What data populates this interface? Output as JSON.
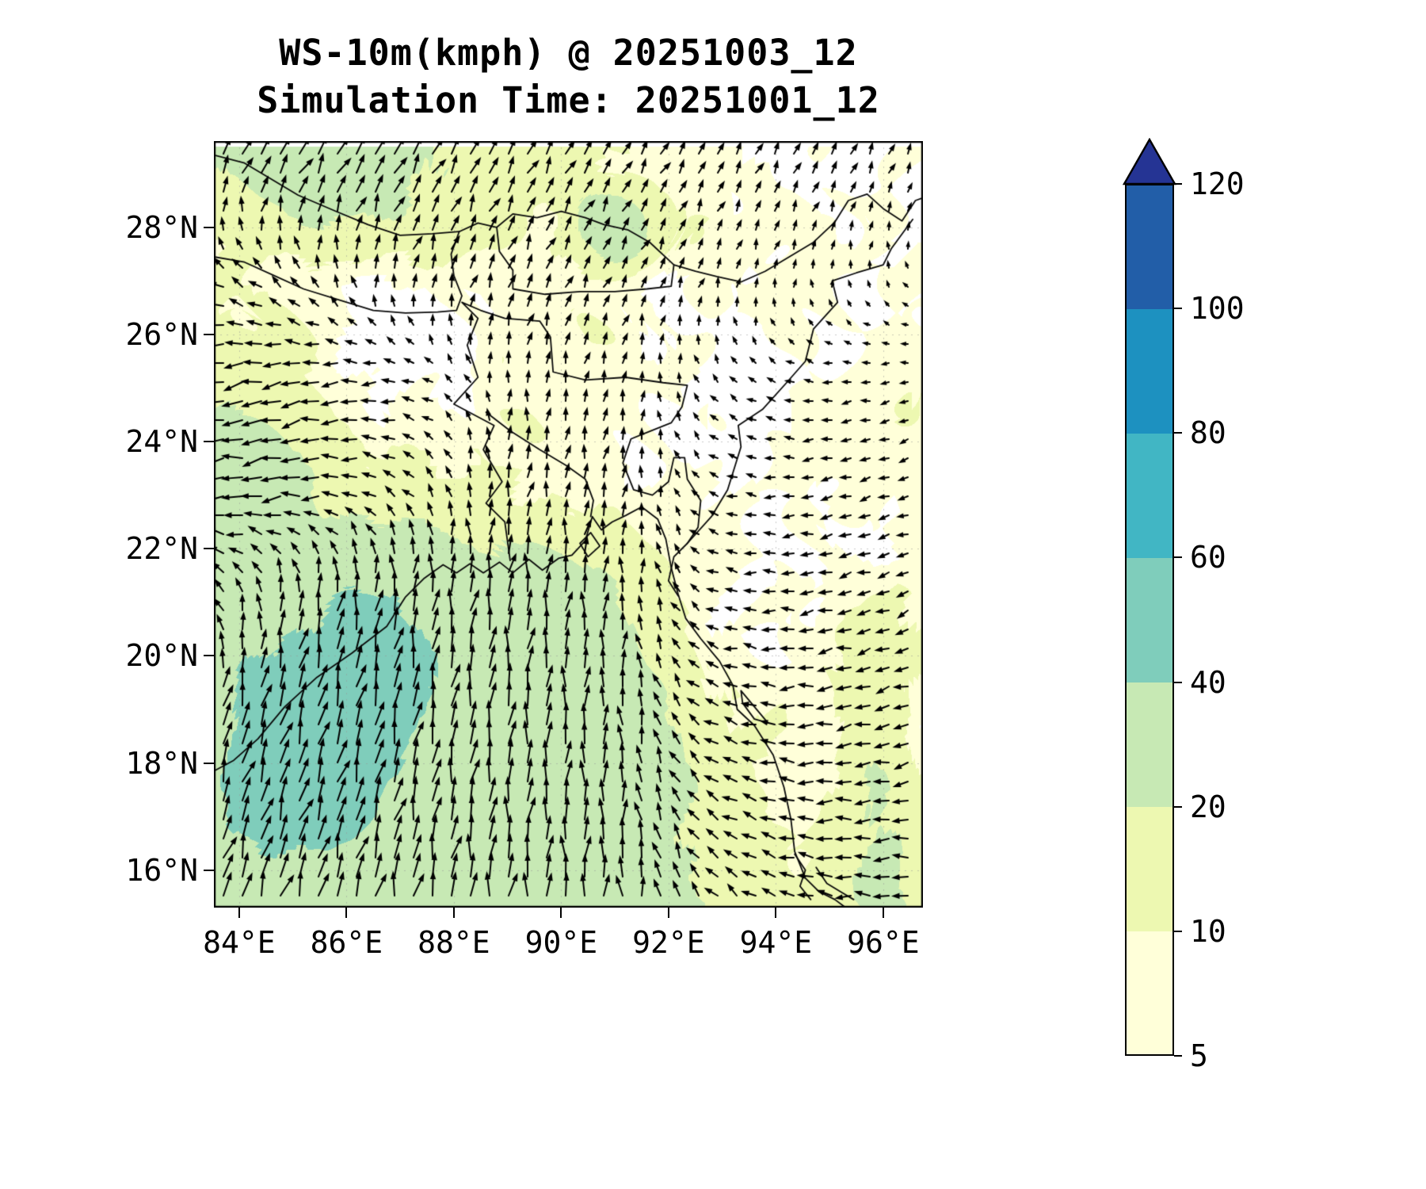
{
  "title": {
    "line1": "WS-10m(kmph) @ 20251003_12",
    "line2": "Simulation Time: 20251001_12"
  },
  "chart_data": {
    "type": "heatmap",
    "subtype": "wind-speed-map-with-quiver",
    "variable": "WS-10m",
    "units": "kmph",
    "valid_time": "20251003_12",
    "simulation_time": "20251001_12",
    "title": "WS-10m(kmph) @ 20251003_12",
    "subtitle": "Simulation Time: 20251001_12",
    "x_axis": {
      "ticks": [
        "84°E",
        "86°E",
        "88°E",
        "90°E",
        "92°E",
        "94°E",
        "96°E"
      ],
      "tick_values": [
        84,
        86,
        88,
        90,
        92,
        94,
        96
      ],
      "range": [
        83.53,
        96.74
      ]
    },
    "y_axis": {
      "ticks": [
        "16°N",
        "18°N",
        "20°N",
        "22°N",
        "24°N",
        "26°N",
        "28°N"
      ],
      "tick_values": [
        16,
        18,
        20,
        22,
        24,
        26,
        28
      ],
      "range": [
        15.3,
        29.61
      ]
    },
    "grid": "faint dotted",
    "colorbar": {
      "levels": [
        5,
        10,
        20,
        40,
        60,
        80,
        100,
        120
      ],
      "labels": [
        "5",
        "10",
        "20",
        "40",
        "60",
        "80",
        "100",
        "120"
      ],
      "band_colors": [
        "#ffffd9",
        "#edf8b1",
        "#c7e9b4",
        "#7fcdbb",
        "#41b6c4",
        "#1d91c0",
        "#225ea8"
      ],
      "under_color": "#ffffff",
      "over_color": "#253494",
      "extend": "max"
    },
    "speed_field": {
      "comment": "wind speed (kmph) estimated on 1-degree grid, rows from lat_start northward",
      "lon_start": 83,
      "lon_step": 1,
      "lat_start": 15,
      "lat_step": 1,
      "values_by_lat": [
        [
          28,
          30,
          32,
          32,
          32,
          30,
          28,
          26,
          25,
          24,
          18,
          14,
          14,
          22,
          12
        ],
        [
          30,
          34,
          36,
          35,
          33,
          31,
          29,
          27,
          26,
          24,
          16,
          12,
          14,
          24,
          12
        ],
        [
          32,
          42,
          46,
          44,
          36,
          32,
          30,
          28,
          26,
          23,
          14,
          10,
          12,
          24,
          6
        ],
        [
          30,
          45,
          50,
          48,
          40,
          33,
          31,
          29,
          27,
          23,
          12,
          8,
          8,
          22,
          4
        ],
        [
          26,
          44,
          50,
          49,
          45,
          34,
          31,
          29,
          27,
          21,
          10,
          8,
          6,
          16,
          4
        ],
        [
          22,
          38,
          46,
          47,
          46,
          34,
          31,
          28,
          25,
          16,
          8,
          6,
          8,
          14,
          6
        ],
        [
          18,
          26,
          34,
          44,
          40,
          32,
          29,
          26,
          21,
          11,
          6,
          6,
          8,
          12,
          8
        ],
        [
          20,
          24,
          22,
          26,
          26,
          24,
          22,
          19,
          13,
          8,
          6,
          4,
          4,
          6,
          8
        ],
        [
          22,
          28,
          24,
          14,
          12,
          12,
          12,
          10,
          8,
          6,
          6,
          4,
          6,
          6,
          8
        ],
        [
          18,
          26,
          20,
          10,
          8,
          8,
          8,
          8,
          6,
          6,
          4,
          4,
          6,
          8,
          8
        ],
        [
          12,
          16,
          12,
          8,
          4,
          4,
          8,
          8,
          6,
          6,
          4,
          4,
          6,
          6,
          8
        ],
        [
          10,
          12,
          10,
          4,
          3,
          4,
          8,
          8,
          8,
          4,
          4,
          6,
          6,
          6,
          8
        ],
        [
          8,
          10,
          6,
          4,
          4,
          8,
          8,
          10,
          8,
          4,
          4,
          6,
          6,
          6,
          6
        ],
        [
          10,
          14,
          18,
          20,
          16,
          12,
          10,
          12,
          42,
          12,
          8,
          6,
          6,
          4,
          4
        ],
        [
          16,
          22,
          26,
          28,
          24,
          18,
          14,
          12,
          10,
          8,
          8,
          4,
          4,
          4,
          4
        ]
      ]
    },
    "wind_vectors": {
      "comment": "normalized u,v flow direction on 2-degree grid, rows from lat_start northward; strong southerlies over Bay of Bengal, easterly/westward flow over west-central India",
      "lon_start": 83,
      "lon_step": 2,
      "lat_start": 15,
      "lat_step": 2,
      "u": [
        [
          0.3,
          0.3,
          0.2,
          0.1,
          0.0,
          -0.4,
          -0.6,
          -0.6
        ],
        [
          0.3,
          0.35,
          0.25,
          0.1,
          0.0,
          -0.5,
          -0.6,
          -0.6
        ],
        [
          0.2,
          0.3,
          0.2,
          0.1,
          0.0,
          -0.5,
          -0.6,
          -0.5
        ],
        [
          -0.5,
          0.1,
          0.15,
          0.1,
          0.05,
          -0.4,
          -0.5,
          -0.4
        ],
        [
          -0.9,
          -0.8,
          -0.4,
          0.1,
          0.1,
          -0.3,
          -0.4,
          -0.3
        ],
        [
          -0.9,
          -0.8,
          -0.5,
          0.0,
          0.1,
          -0.2,
          -0.3,
          -0.2
        ],
        [
          -0.6,
          -0.3,
          0.1,
          0.2,
          0.2,
          0.1,
          0.0,
          -0.1
        ],
        [
          0.3,
          0.4,
          0.4,
          0.3,
          0.3,
          0.2,
          0.2,
          0.1
        ]
      ],
      "v": [
        [
          1.0,
          1.0,
          1.0,
          1.0,
          0.9,
          0.4,
          0.1,
          0.0
        ],
        [
          1.0,
          1.0,
          1.0,
          1.0,
          0.9,
          0.3,
          0.0,
          -0.1
        ],
        [
          0.9,
          1.0,
          1.0,
          1.0,
          0.8,
          0.2,
          -0.1,
          -0.2
        ],
        [
          0.3,
          0.8,
          0.9,
          0.9,
          0.7,
          0.1,
          -0.1,
          -0.2
        ],
        [
          -0.1,
          -0.1,
          0.3,
          0.6,
          0.5,
          0.1,
          -0.1,
          -0.1
        ],
        [
          -0.2,
          -0.2,
          0.0,
          0.4,
          0.4,
          0.2,
          0.0,
          -0.1
        ],
        [
          0.2,
          0.4,
          0.5,
          0.5,
          0.4,
          0.3,
          0.2,
          0.1
        ],
        [
          0.6,
          0.7,
          0.7,
          0.6,
          0.5,
          0.4,
          0.4,
          0.3
        ]
      ]
    },
    "coastlines": [
      {
        "name": "coast-main",
        "points": [
          [
            83.53,
            17.85
          ],
          [
            83.9,
            18.05
          ],
          [
            84.35,
            18.45
          ],
          [
            84.85,
            19.05
          ],
          [
            85.45,
            19.6
          ],
          [
            86.1,
            20.05
          ],
          [
            86.75,
            20.55
          ],
          [
            87.1,
            21.1
          ],
          [
            87.45,
            21.45
          ],
          [
            87.8,
            21.7
          ],
          [
            88.05,
            21.55
          ],
          [
            88.3,
            21.72
          ],
          [
            88.55,
            21.55
          ],
          [
            88.85,
            21.75
          ],
          [
            89.1,
            21.55
          ],
          [
            89.4,
            21.8
          ],
          [
            89.65,
            21.6
          ],
          [
            89.95,
            21.82
          ],
          [
            90.2,
            21.88
          ],
          [
            90.45,
            22.15
          ],
          [
            90.58,
            22.6
          ],
          [
            90.75,
            22.35
          ],
          [
            90.95,
            22.5
          ],
          [
            91.2,
            22.62
          ],
          [
            91.5,
            22.78
          ],
          [
            91.8,
            22.55
          ],
          [
            91.95,
            22.18
          ],
          [
            92.05,
            21.65
          ],
          [
            92.18,
            21.15
          ],
          [
            92.32,
            20.7
          ],
          [
            92.6,
            20.32
          ],
          [
            92.95,
            19.9
          ],
          [
            93.2,
            19.45
          ],
          [
            93.28,
            19.0
          ],
          [
            93.6,
            18.7
          ],
          [
            93.95,
            18.15
          ],
          [
            94.15,
            17.55
          ],
          [
            94.28,
            16.95
          ],
          [
            94.35,
            16.35
          ],
          [
            94.55,
            15.85
          ],
          [
            94.8,
            15.6
          ],
          [
            95.1,
            15.45
          ],
          [
            95.3,
            15.3
          ]
        ]
      },
      {
        "name": "himalaya-border",
        "points": [
          [
            83.53,
            29.35
          ],
          [
            84.1,
            29.2
          ],
          [
            84.6,
            28.9
          ],
          [
            85.1,
            28.6
          ],
          [
            85.8,
            28.3
          ],
          [
            86.4,
            28.05
          ],
          [
            87.0,
            27.85
          ],
          [
            87.6,
            27.88
          ],
          [
            88.1,
            27.92
          ],
          [
            88.45,
            28.08
          ],
          [
            88.8,
            28.0
          ],
          [
            89.1,
            28.25
          ],
          [
            89.55,
            28.18
          ],
          [
            90.0,
            28.3
          ],
          [
            90.45,
            28.18
          ],
          [
            90.8,
            28.05
          ],
          [
            91.25,
            27.95
          ],
          [
            91.65,
            27.72
          ],
          [
            92.1,
            27.3
          ],
          [
            92.5,
            27.18
          ],
          [
            92.9,
            27.08
          ],
          [
            93.35,
            26.98
          ],
          [
            93.8,
            27.18
          ],
          [
            94.25,
            27.45
          ],
          [
            94.7,
            27.72
          ],
          [
            95.1,
            28.1
          ],
          [
            95.35,
            28.5
          ],
          [
            95.7,
            28.62
          ],
          [
            96.0,
            28.35
          ],
          [
            96.35,
            28.12
          ],
          [
            96.6,
            28.5
          ],
          [
            96.74,
            28.55
          ]
        ]
      },
      {
        "name": "nepal-south-border",
        "points": [
          [
            83.53,
            27.45
          ],
          [
            84.1,
            27.35
          ],
          [
            84.65,
            27.1
          ],
          [
            85.2,
            26.85
          ],
          [
            85.85,
            26.65
          ],
          [
            86.5,
            26.45
          ],
          [
            87.1,
            26.4
          ],
          [
            87.7,
            26.42
          ],
          [
            88.05,
            26.45
          ],
          [
            88.15,
            26.72
          ],
          [
            88.0,
            27.1
          ],
          [
            87.95,
            27.5
          ],
          [
            88.1,
            27.92
          ]
        ]
      },
      {
        "name": "bhutan-border",
        "points": [
          [
            88.8,
            28.0
          ],
          [
            88.85,
            27.55
          ],
          [
            89.1,
            27.2
          ],
          [
            89.1,
            26.85
          ],
          [
            89.7,
            26.75
          ],
          [
            90.35,
            26.8
          ],
          [
            91.0,
            26.8
          ],
          [
            91.6,
            26.85
          ],
          [
            92.05,
            26.9
          ],
          [
            92.1,
            27.3
          ]
        ]
      },
      {
        "name": "bangladesh-border",
        "points": [
          [
            89.05,
            21.78
          ],
          [
            88.95,
            22.5
          ],
          [
            88.6,
            22.85
          ],
          [
            88.9,
            23.25
          ],
          [
            88.55,
            23.85
          ],
          [
            88.75,
            24.3
          ],
          [
            88.0,
            24.7
          ],
          [
            88.45,
            25.2
          ],
          [
            88.25,
            25.8
          ],
          [
            88.45,
            26.3
          ],
          [
            88.15,
            26.6
          ],
          [
            88.5,
            26.45
          ],
          [
            88.95,
            26.3
          ],
          [
            89.6,
            26.25
          ],
          [
            89.8,
            25.95
          ],
          [
            89.85,
            25.3
          ],
          [
            90.45,
            25.15
          ],
          [
            91.2,
            25.2
          ],
          [
            91.9,
            25.1
          ],
          [
            92.35,
            25.05
          ],
          [
            92.25,
            24.65
          ],
          [
            92.05,
            24.35
          ],
          [
            91.55,
            24.15
          ],
          [
            91.3,
            24.05
          ],
          [
            91.15,
            23.6
          ],
          [
            91.35,
            23.1
          ],
          [
            91.7,
            23.0
          ],
          [
            92.0,
            23.25
          ],
          [
            92.1,
            23.7
          ],
          [
            92.3,
            23.7
          ],
          [
            92.35,
            23.3
          ],
          [
            92.6,
            22.9
          ],
          [
            92.55,
            22.4
          ],
          [
            92.35,
            22.1
          ],
          [
            92.1,
            21.85
          ],
          [
            92.0,
            21.4
          ],
          [
            92.18,
            21.12
          ]
        ]
      },
      {
        "name": "india-myanmar-border",
        "points": [
          [
            92.35,
            22.1
          ],
          [
            92.8,
            22.6
          ],
          [
            93.1,
            23.1
          ],
          [
            93.35,
            23.9
          ],
          [
            93.3,
            24.3
          ],
          [
            93.75,
            24.6
          ],
          [
            94.2,
            25.1
          ],
          [
            94.55,
            25.5
          ],
          [
            94.7,
            26.1
          ],
          [
            95.15,
            26.6
          ],
          [
            95.05,
            27.0
          ],
          [
            95.5,
            27.15
          ],
          [
            96.0,
            27.3
          ],
          [
            96.15,
            27.6
          ],
          [
            96.55,
            28.15
          ]
        ]
      },
      {
        "name": "estuary-rivers",
        "points": [
          [
            88.6,
            24.55
          ],
          [
            89.05,
            24.2
          ],
          [
            89.6,
            23.85
          ],
          [
            90.1,
            23.55
          ],
          [
            90.45,
            23.3
          ],
          [
            90.6,
            22.9
          ],
          [
            90.55,
            22.6
          ]
        ]
      },
      {
        "name": "delta-island",
        "points": [
          [
            90.35,
            22.1
          ],
          [
            90.55,
            22.3
          ],
          [
            90.72,
            22.05
          ],
          [
            90.5,
            21.85
          ],
          [
            90.35,
            22.1
          ]
        ]
      },
      {
        "name": "ramree-island",
        "points": [
          [
            93.35,
            19.35
          ],
          [
            93.6,
            19.05
          ],
          [
            93.85,
            18.75
          ],
          [
            93.6,
            18.82
          ],
          [
            93.38,
            19.12
          ],
          [
            93.35,
            19.35
          ]
        ]
      },
      {
        "name": "se-inlet-1",
        "points": [
          [
            94.35,
            16.3
          ],
          [
            94.55,
            16.0
          ],
          [
            94.45,
            15.7
          ],
          [
            94.65,
            15.45
          ]
        ]
      },
      {
        "name": "se-inlet-2",
        "points": [
          [
            94.75,
            16.05
          ],
          [
            94.95,
            15.75
          ],
          [
            95.2,
            15.6
          ],
          [
            95.45,
            15.45
          ]
        ]
      }
    ]
  }
}
